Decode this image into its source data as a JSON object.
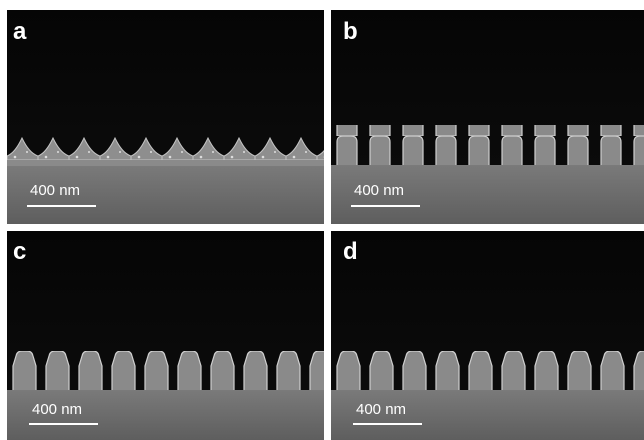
{
  "panels": [
    {
      "label": "a",
      "scale_bar": "400 nm"
    },
    {
      "label": "b",
      "scale_bar": "400 nm"
    },
    {
      "label": "c",
      "scale_bar": "400 nm"
    },
    {
      "label": "d",
      "scale_bar": "400 nm"
    }
  ]
}
